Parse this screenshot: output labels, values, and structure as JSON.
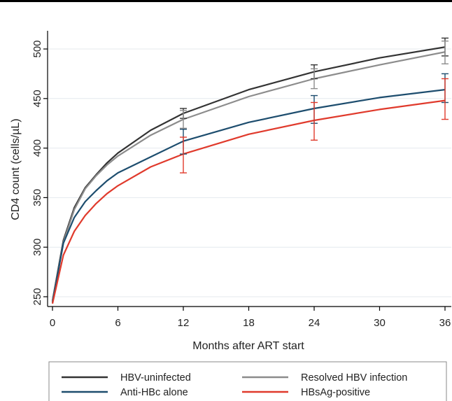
{
  "chart_data": {
    "type": "line",
    "title": "",
    "xlabel": "Months after ART start",
    "ylabel": "CD4 count (cells/µL)",
    "xlim": [
      0,
      36
    ],
    "ylim": [
      240,
      520
    ],
    "xticks": [
      0,
      6,
      12,
      18,
      24,
      30,
      36
    ],
    "yticks": [
      250,
      300,
      350,
      400,
      450,
      500
    ],
    "grid": "horizontal",
    "legend_position": "bottom",
    "x": [
      0,
      1,
      2,
      3,
      4,
      5,
      6,
      9,
      12,
      18,
      24,
      30,
      36
    ],
    "series": [
      {
        "name": "HBV-uninfected",
        "color": "#333333",
        "values": [
          246,
          307,
          340,
          360,
          373,
          385,
          395,
          418,
          435,
          459,
          477,
          491,
          502
        ],
        "error_bars": [
          {
            "x": 12,
            "low": 430,
            "high": 440
          },
          {
            "x": 24,
            "low": 470,
            "high": 484
          },
          {
            "x": 36,
            "low": 493,
            "high": 511
          }
        ]
      },
      {
        "name": "Resolved HBV infection",
        "color": "#8c8c8c",
        "values": [
          245,
          305,
          338,
          359,
          372,
          383,
          392,
          413,
          429,
          452,
          470,
          484,
          497
        ],
        "error_bars": [
          {
            "x": 12,
            "low": 420,
            "high": 438
          },
          {
            "x": 24,
            "low": 460,
            "high": 480
          },
          {
            "x": 36,
            "low": 485,
            "high": 508
          }
        ]
      },
      {
        "name": "Anti-HBc alone",
        "color": "#1d4d6e",
        "values": [
          244,
          304,
          330,
          346,
          357,
          367,
          375,
          391,
          407,
          426,
          440,
          451,
          459
        ],
        "error_bars": [
          {
            "x": 12,
            "low": 394,
            "high": 419
          },
          {
            "x": 24,
            "low": 425,
            "high": 453
          },
          {
            "x": 36,
            "low": 446,
            "high": 475
          }
        ]
      },
      {
        "name": "HBsAg-positive",
        "color": "#e03a2c",
        "values": [
          243,
          292,
          316,
          332,
          344,
          354,
          362,
          381,
          394,
          414,
          428,
          439,
          448
        ],
        "error_bars": [
          {
            "x": 12,
            "low": 375,
            "high": 411
          },
          {
            "x": 24,
            "low": 408,
            "high": 446
          },
          {
            "x": 36,
            "low": 429,
            "high": 470
          }
        ]
      }
    ]
  }
}
